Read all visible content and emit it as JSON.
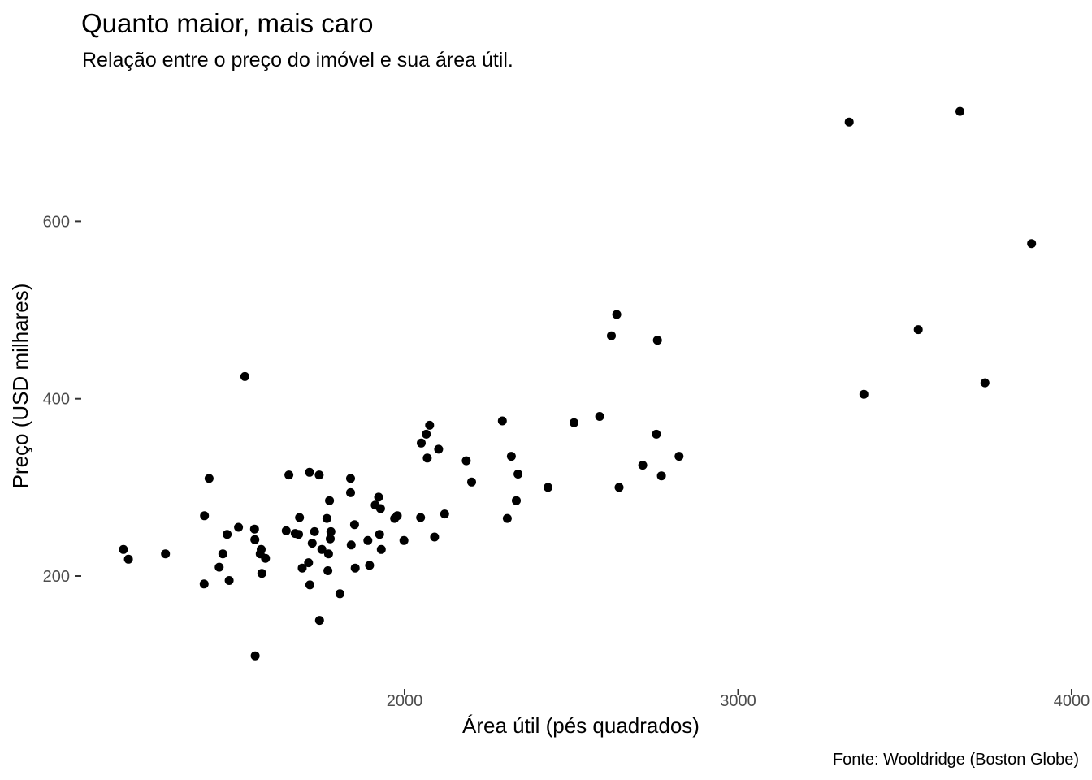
{
  "chart_data": {
    "type": "scatter",
    "title": "Quanto maior, mais caro",
    "subtitle": "Relação entre o preço do imóvel e sua área útil.",
    "xlabel": "Área útil (pés quadrados)",
    "ylabel": "Preço (USD milhares)",
    "caption": "Fonte: Wooldridge (Boston Globe)",
    "xlim": [
      1000,
      4000
    ],
    "ylim": [
      85,
      735
    ],
    "x_ticks": [
      2000,
      3000,
      4000
    ],
    "y_ticks": [
      200,
      400,
      600
    ],
    "grid": false,
    "point_color": "#000000",
    "points": [
      [
        3333,
        712
      ],
      [
        3665,
        724
      ],
      [
        3880,
        575
      ],
      [
        3540,
        478
      ],
      [
        3740,
        418
      ],
      [
        3377,
        405
      ],
      [
        2636,
        495
      ],
      [
        2620,
        471
      ],
      [
        2758,
        466
      ],
      [
        2823,
        335
      ],
      [
        2755,
        360
      ],
      [
        2585,
        380
      ],
      [
        2770,
        313
      ],
      [
        2714,
        325
      ],
      [
        2643,
        300
      ],
      [
        2508,
        373
      ],
      [
        2430,
        300
      ],
      [
        2293,
        375
      ],
      [
        2335,
        285
      ],
      [
        2340,
        315
      ],
      [
        2320,
        335
      ],
      [
        2308,
        265
      ],
      [
        2201,
        306
      ],
      [
        2185,
        330
      ],
      [
        2120,
        270
      ],
      [
        2102,
        343
      ],
      [
        2090,
        244
      ],
      [
        2075,
        370
      ],
      [
        2065,
        360
      ],
      [
        2068,
        333
      ],
      [
        2050,
        350
      ],
      [
        2048,
        266
      ],
      [
        1998,
        240
      ],
      [
        1978,
        268
      ],
      [
        1970,
        265
      ],
      [
        1922,
        289
      ],
      [
        1928,
        276
      ],
      [
        1912,
        280
      ],
      [
        1925,
        247
      ],
      [
        1930,
        230
      ],
      [
        1895,
        212
      ],
      [
        1890,
        240
      ],
      [
        1850,
        258
      ],
      [
        1852,
        209
      ],
      [
        1838,
        310
      ],
      [
        1838,
        294
      ],
      [
        1840,
        235
      ],
      [
        1806,
        180
      ],
      [
        1775,
        285
      ],
      [
        1777,
        242
      ],
      [
        1779,
        250
      ],
      [
        1772,
        225
      ],
      [
        1770,
        206
      ],
      [
        1767,
        265
      ],
      [
        1752,
        230
      ],
      [
        1745,
        150
      ],
      [
        1744,
        314
      ],
      [
        1730,
        250
      ],
      [
        1723,
        237
      ],
      [
        1715,
        317
      ],
      [
        1712,
        215
      ],
      [
        1716,
        190
      ],
      [
        1693,
        209
      ],
      [
        1685,
        266
      ],
      [
        1682,
        247
      ],
      [
        1672,
        248
      ],
      [
        1653,
        314
      ],
      [
        1645,
        251
      ],
      [
        1583,
        220
      ],
      [
        1570,
        230
      ],
      [
        1567,
        225
      ],
      [
        1572,
        203
      ],
      [
        1550,
        253
      ],
      [
        1551,
        241
      ],
      [
        1552,
        110
      ],
      [
        1521,
        425
      ],
      [
        1502,
        255
      ],
      [
        1468,
        247
      ],
      [
        1474,
        195
      ],
      [
        1455,
        225
      ],
      [
        1444,
        210
      ],
      [
        1414,
        310
      ],
      [
        1400,
        268
      ],
      [
        1399,
        191
      ],
      [
        1283,
        225
      ],
      [
        1172,
        219
      ],
      [
        1157,
        230
      ]
    ]
  }
}
